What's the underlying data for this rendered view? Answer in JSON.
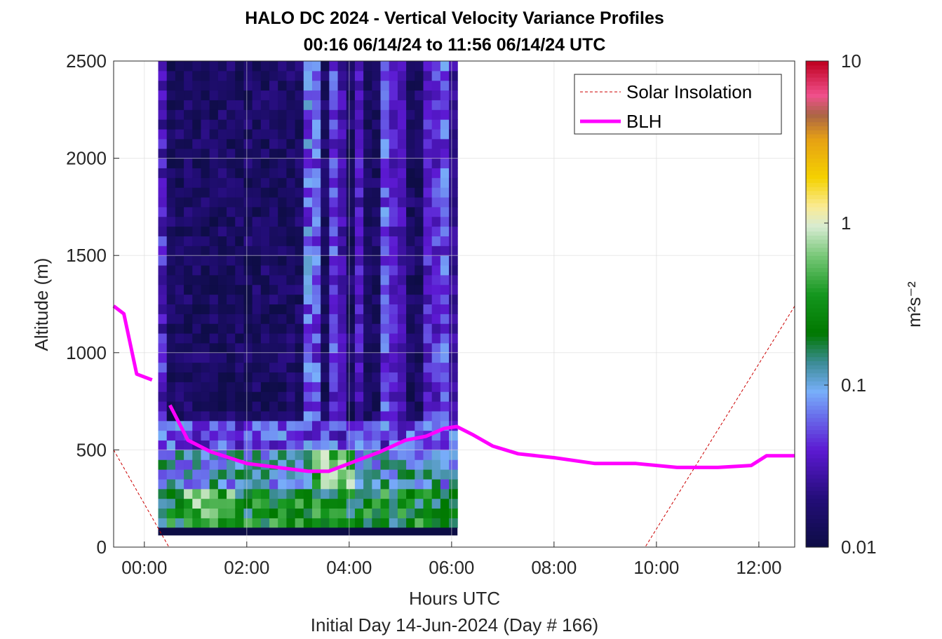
{
  "chart_data": {
    "type": "heatmap",
    "title": "HALO DC 2024 - Vertical Velocity Variance Profiles",
    "subtitle": "00:16 06/14/24 to 11:56 06/14/24  UTC",
    "xlabel": "Hours UTC",
    "xlabel2": "Initial Day 14-Jun-2024 (Day # 166)",
    "ylabel": "Altitude (m)",
    "x_unit": "hours UTC",
    "xlim": [
      -0.6,
      12.7
    ],
    "ylim": [
      0,
      2500
    ],
    "x_ticks": [
      {
        "value": 0,
        "label": "00:00"
      },
      {
        "value": 2,
        "label": "02:00"
      },
      {
        "value": 4,
        "label": "04:00"
      },
      {
        "value": 6,
        "label": "06:00"
      },
      {
        "value": 8,
        "label": "08:00"
      },
      {
        "value": 10,
        "label": "10:00"
      },
      {
        "value": 12,
        "label": "12:00"
      }
    ],
    "y_ticks": [
      {
        "value": 0,
        "label": "0"
      },
      {
        "value": 500,
        "label": "500"
      },
      {
        "value": 1000,
        "label": "1000"
      },
      {
        "value": 1500,
        "label": "1500"
      },
      {
        "value": 2000,
        "label": "2000"
      },
      {
        "value": 2500,
        "label": "2500"
      }
    ],
    "grid": true,
    "colorbar": {
      "label": "m²s⁻²",
      "scale": "log",
      "range": [
        0.01,
        10
      ],
      "ticks": [
        {
          "value": 0.01,
          "label": "0.01"
        },
        {
          "value": 0.1,
          "label": "0.1"
        },
        {
          "value": 1,
          "label": "1"
        },
        {
          "value": 10,
          "label": "10"
        }
      ]
    },
    "legend": {
      "position": "top-right",
      "entries": [
        {
          "label": "Solar Insolation",
          "color": "#cc0000",
          "style": "dashed"
        },
        {
          "label": "BLH",
          "color": "#ff00ff",
          "style": "solid"
        }
      ]
    },
    "heatmap_grid": {
      "x_start": 0.27,
      "x_step": 0.167,
      "columns": 35,
      "y_start": 100,
      "y_step": 50,
      "rows": 48,
      "value_unit": "m2 s-2"
    },
    "blh": {
      "name": "BLH",
      "segments": [
        {
          "x": [
            -0.6,
            -0.4,
            -0.15,
            0.15
          ],
          "y": [
            1240,
            1200,
            890,
            860
          ]
        },
        {
          "x": [
            0.5,
            0.85,
            1.3,
            2.0,
            2.6,
            3.2,
            3.6,
            4.1,
            4.6,
            5.1,
            5.5,
            5.85,
            6.1,
            6.4,
            6.8,
            7.3,
            8.0,
            8.8,
            9.6,
            10.4,
            11.2,
            11.85,
            12.15,
            12.7
          ],
          "y": [
            730,
            550,
            490,
            430,
            410,
            390,
            390,
            440,
            490,
            550,
            570,
            610,
            620,
            580,
            520,
            480,
            460,
            430,
            430,
            410,
            410,
            420,
            470,
            470
          ]
        }
      ]
    },
    "solar_insolation": {
      "name": "Solar Insolation",
      "x": [
        -0.6,
        0.48,
        0.48,
        9.78,
        9.78,
        12.7
      ],
      "y": [
        500,
        0,
        0,
        0,
        0,
        1240
      ]
    }
  },
  "colors": {
    "blh": "#ff00ff",
    "solar": "#cc0000",
    "missing_band": "#0d0d45",
    "background": "#ffffff"
  }
}
